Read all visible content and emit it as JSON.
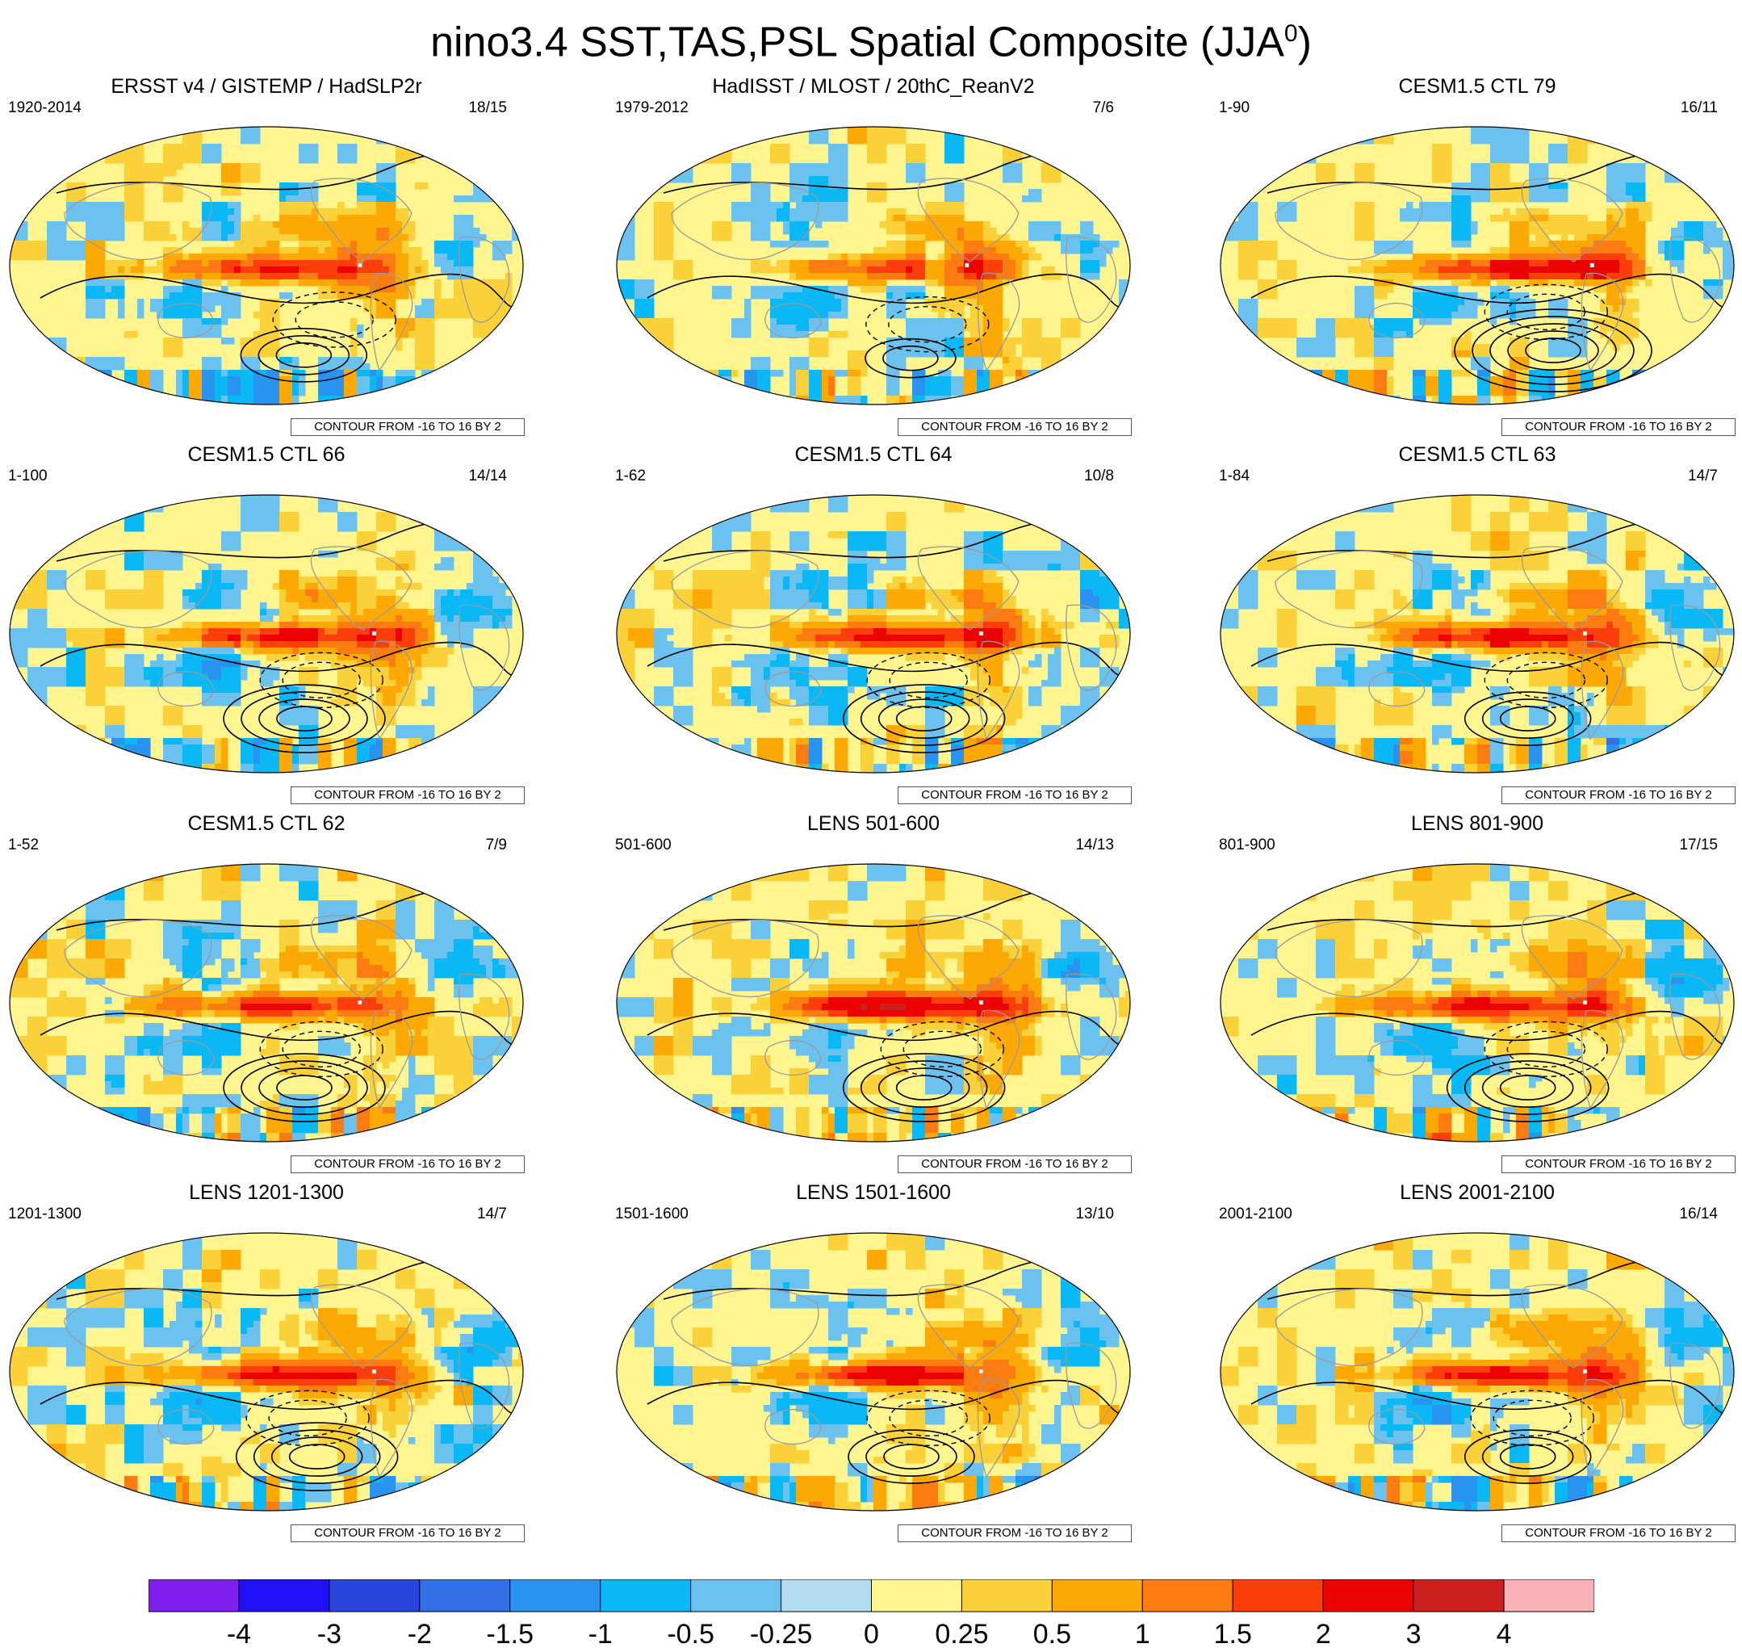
{
  "chart_data": {
    "type": "contour_map_grid",
    "title": "nino3.4 SST,TAS,PSL Spatial Composite (JJA",
    "title_superscript": "0",
    "title_suffix": ")",
    "shading_variable": "SST/TAS anomaly",
    "contour_variable": "PSL anomaly",
    "projection": "Robinson (Pacific-centered)",
    "panels": [
      {
        "title": "ERSST v4 / GISTEMP / HadSLP2r",
        "period": "1920-2014",
        "count": "18/15",
        "contour_note": "CONTOUR FROM -16 TO 16 BY 2",
        "hotspot": {
          "lon": -130,
          "lat": 0,
          "peak": 2.0
        },
        "psl_center": {
          "lon": -150,
          "lat": -58,
          "rings": 3
        },
        "neg_center": {
          "lon": -130,
          "lat": -35
        }
      },
      {
        "title": "HadISST / MLOST / 20thC_ReanV2",
        "period": "1979-2012",
        "count": "7/6",
        "contour_note": "CONTOUR FROM -16 TO 16 BY 2",
        "hotspot": {
          "lon": -130,
          "lat": 0,
          "peak": 1.7
        },
        "psl_center": {
          "lon": -150,
          "lat": -60,
          "rings": 2
        },
        "neg_center": {
          "lon": -140,
          "lat": -38
        }
      },
      {
        "title": "CESM1.5 CTL 79",
        "period": "1-90",
        "count": "16/11",
        "contour_note": "CONTOUR FROM -16 TO 16 BY 2",
        "hotspot": {
          "lon": -115,
          "lat": 0,
          "peak": 2.5
        },
        "psl_center": {
          "lon": -120,
          "lat": -55,
          "rings": 5
        },
        "neg_center": {
          "lon": -130,
          "lat": -30
        }
      },
      {
        "title": "CESM1.5 CTL 66",
        "period": "1-100",
        "count": "14/14",
        "contour_note": "CONTOUR FROM -16 TO 16 BY 2",
        "hotspot": {
          "lon": -120,
          "lat": 0,
          "peak": 2.5
        },
        "psl_center": {
          "lon": -150,
          "lat": -55,
          "rings": 4
        },
        "neg_center": {
          "lon": -140,
          "lat": -30
        }
      },
      {
        "title": "CESM1.5 CTL 64",
        "period": "1-62",
        "count": "10/8",
        "contour_note": "CONTOUR FROM -16 TO 16 BY 2",
        "hotspot": {
          "lon": -120,
          "lat": 0,
          "peak": 2.5
        },
        "psl_center": {
          "lon": -140,
          "lat": -55,
          "rings": 4
        },
        "neg_center": {
          "lon": -140,
          "lat": -30
        }
      },
      {
        "title": "CESM1.5 CTL 63",
        "period": "1-84",
        "count": "14/7",
        "contour_note": "CONTOUR FROM -16 TO 16 BY 2",
        "hotspot": {
          "lon": -120,
          "lat": 0,
          "peak": 2.5
        },
        "psl_center": {
          "lon": -140,
          "lat": -55,
          "rings": 3
        },
        "neg_center": {
          "lon": -130,
          "lat": -30
        }
      },
      {
        "title": "CESM1.5 CTL 62",
        "period": "1-52",
        "count": "7/9",
        "contour_note": "CONTOUR FROM -16 TO 16 BY 2",
        "hotspot": {
          "lon": -130,
          "lat": 0,
          "peak": 2.5
        },
        "psl_center": {
          "lon": -150,
          "lat": -55,
          "rings": 4
        },
        "neg_center": {
          "lon": -140,
          "lat": -30
        }
      },
      {
        "title": "LENS 501-600",
        "period": "501-600",
        "count": "14/13",
        "contour_note": "CONTOUR FROM -16 TO 16 BY 2",
        "hotspot": {
          "lon": -120,
          "lat": 0,
          "peak": 3.0
        },
        "psl_center": {
          "lon": -140,
          "lat": -55,
          "rings": 4
        },
        "neg_center": {
          "lon": -130,
          "lat": -30
        }
      },
      {
        "title": "LENS 801-900",
        "period": "801-900",
        "count": "17/15",
        "contour_note": "CONTOUR FROM -16 TO 16 BY 2",
        "hotspot": {
          "lon": -120,
          "lat": 0,
          "peak": 2.5
        },
        "psl_center": {
          "lon": -140,
          "lat": -55,
          "rings": 4
        },
        "neg_center": {
          "lon": -130,
          "lat": -30
        }
      },
      {
        "title": "LENS 1201-1300",
        "period": "1201-1300",
        "count": "14/7",
        "contour_note": "CONTOUR FROM -16 TO 16 BY 2",
        "hotspot": {
          "lon": -120,
          "lat": 0,
          "peak": 2.5
        },
        "psl_center": {
          "lon": -140,
          "lat": -55,
          "rings": 4
        },
        "neg_center": {
          "lon": -150,
          "lat": -30
        }
      },
      {
        "title": "LENS 1501-1600",
        "period": "1501-1600",
        "count": "13/10",
        "contour_note": "CONTOUR FROM -16 TO 16 BY 2",
        "hotspot": {
          "lon": -120,
          "lat": 0,
          "peak": 2.5
        },
        "psl_center": {
          "lon": -150,
          "lat": -55,
          "rings": 3
        },
        "neg_center": {
          "lon": -140,
          "lat": -30
        }
      },
      {
        "title": "LENS 2001-2100",
        "period": "2001-2100",
        "count": "16/14",
        "contour_note": "CONTOUR FROM -16 TO 16 BY 2",
        "hotspot": {
          "lon": -120,
          "lat": 0,
          "peak": 2.5
        },
        "psl_center": {
          "lon": -140,
          "lat": -55,
          "rings": 3
        },
        "neg_center": {
          "lon": -140,
          "lat": -30
        }
      }
    ],
    "colorbar": {
      "colors": [
        "#7f1fef",
        "#1f10f5",
        "#2a45dc",
        "#3370e6",
        "#2894f0",
        "#0ab8f5",
        "#6cc2ef",
        "#b3dcf1",
        "#fff58f",
        "#fbd13a",
        "#fca906",
        "#fc7c12",
        "#fc3e0a",
        "#ec0200",
        "#cc1f1e",
        "#fab2b8"
      ],
      "tick_labels": [
        "-4",
        "-3",
        "-2",
        "-1.5",
        "-1",
        "-0.5",
        "-0.25",
        "0",
        "0.25",
        "0.5",
        "1",
        "1.5",
        "2",
        "3",
        "4"
      ],
      "levels": [
        -4,
        -3,
        -2,
        -1.5,
        -1,
        -0.5,
        -0.25,
        0,
        0.25,
        0.5,
        1,
        1.5,
        2,
        3,
        4
      ]
    }
  }
}
